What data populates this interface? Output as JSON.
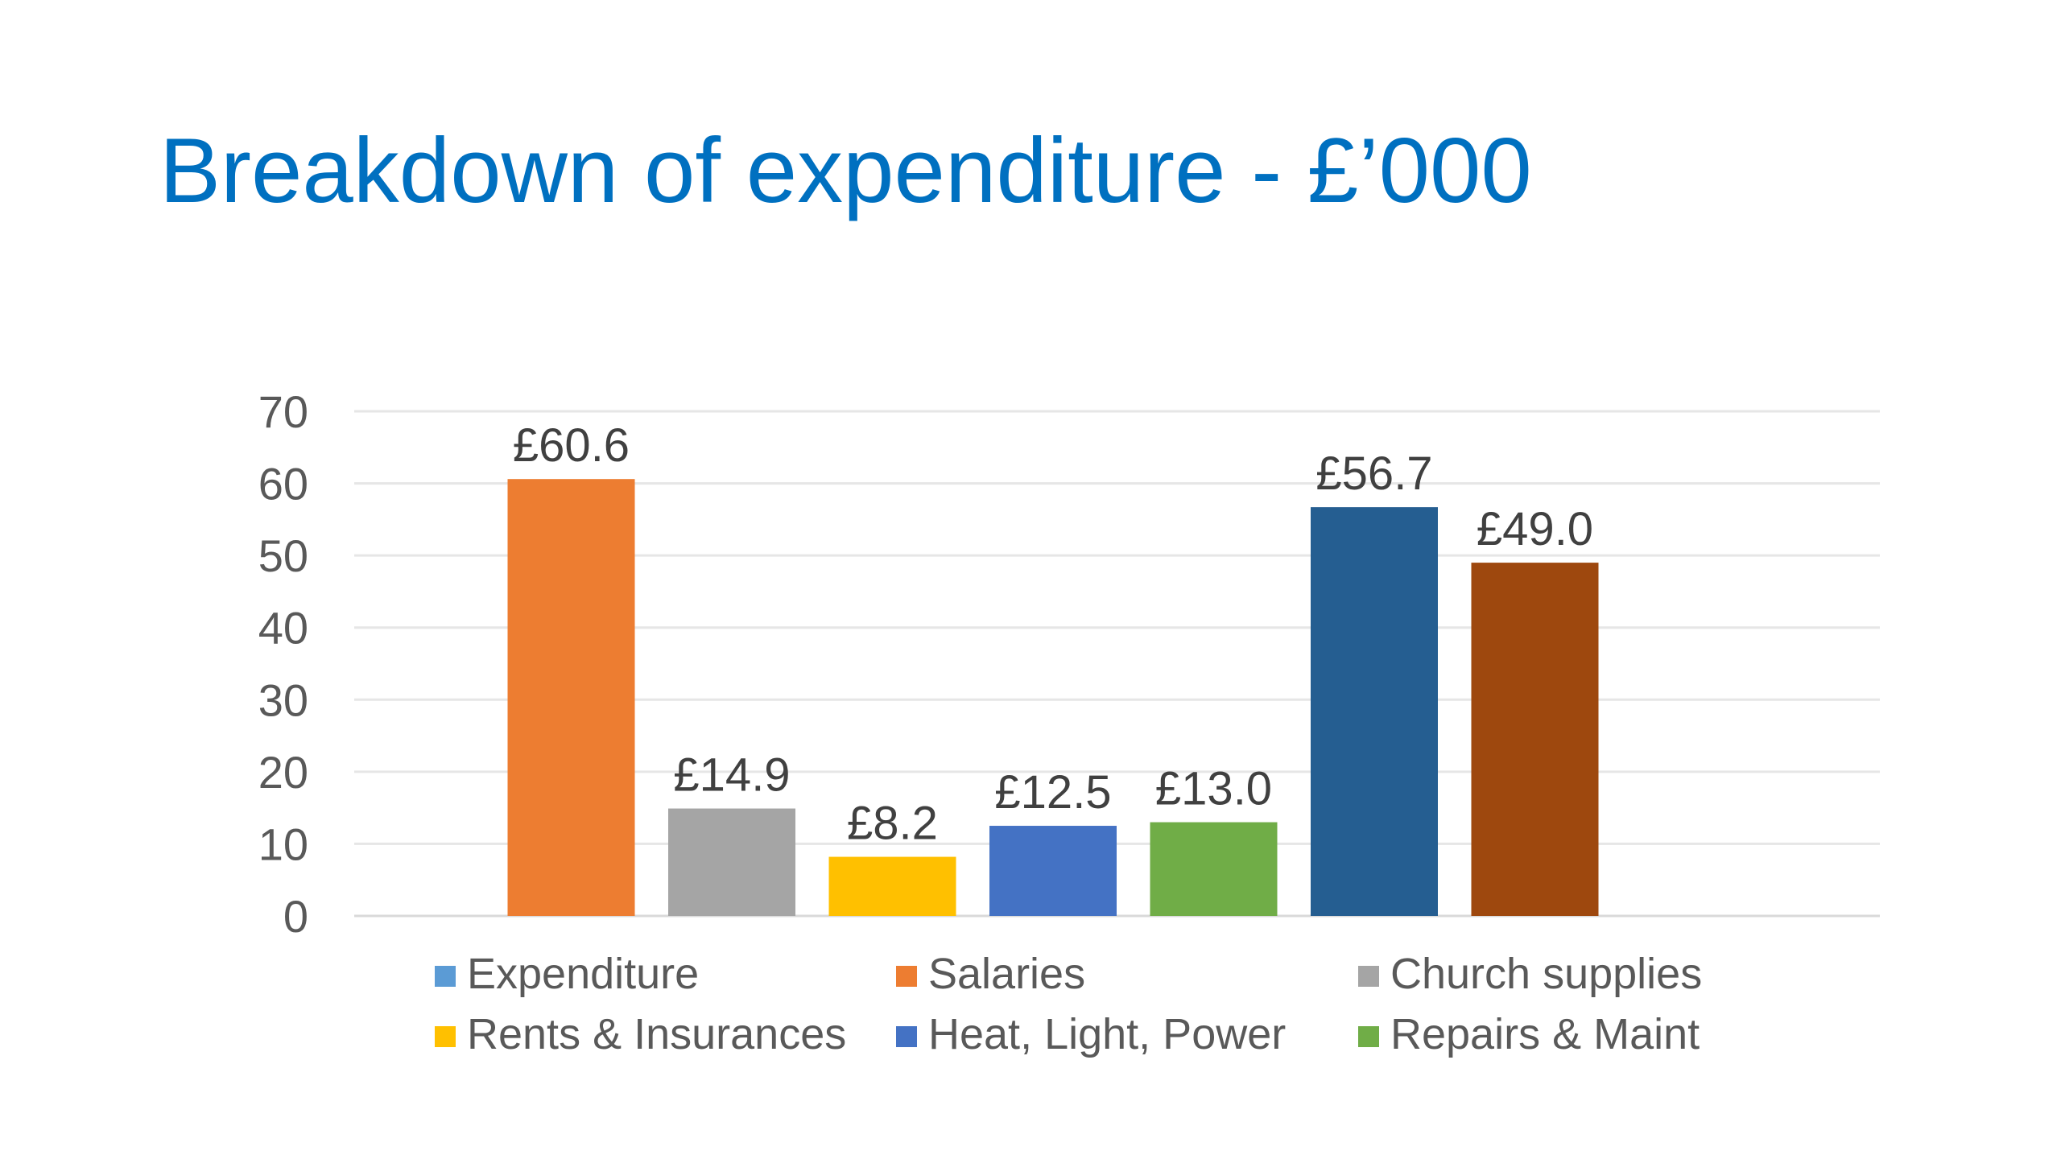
{
  "slide": {
    "title": "Breakdown of expenditure - £’000",
    "title_color": "#0070C0"
  },
  "chart_data": {
    "type": "bar",
    "ylim": [
      0,
      70
    ],
    "yticks": [
      0,
      10,
      20,
      30,
      40,
      50,
      60,
      70
    ],
    "grid": true,
    "legend_position": "bottom",
    "value_prefix": "£",
    "series": [
      {
        "name": "Expenditure",
        "value": null,
        "label": "",
        "color": "#5B9BD5"
      },
      {
        "name": "Salaries",
        "value": 60.6,
        "label": "£60.6",
        "color": "#ED7D31"
      },
      {
        "name": "Church supplies",
        "value": 14.9,
        "label": "£14.9",
        "color": "#A5A5A5"
      },
      {
        "name": "Rents & Insurances",
        "value": 8.2,
        "label": "£8.2",
        "color": "#FFC000"
      },
      {
        "name": "Heat, Light, Power",
        "value": 12.5,
        "label": "£12.5",
        "color": "#4472C4"
      },
      {
        "name": "Repairs & Maint",
        "value": 13.0,
        "label": "£13.0",
        "color": "#70AD47"
      },
      {
        "name": "",
        "value": 56.7,
        "label": "£56.7",
        "color": "#255E91"
      },
      {
        "name": "",
        "value": 49.0,
        "label": "£49.0",
        "color": "#9E480E"
      }
    ],
    "legend": [
      "Expenditure",
      "Salaries",
      "Church supplies",
      "Rents & Insurances",
      "Heat, Light, Power",
      "Repairs & Maint"
    ]
  }
}
